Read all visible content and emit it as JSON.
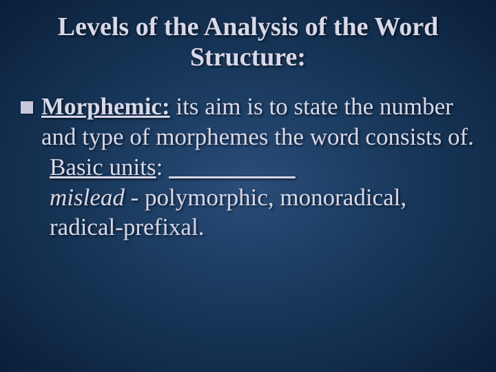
{
  "slide": {
    "title": "Levels of the Analysis of the Word Structure:",
    "bullet_term": "Morphemic:",
    "bullet_text": " its aim is to state the number and type of morphemes the word consists of.",
    "basic_units_label": "Basic units",
    "colon": ": ",
    "blank": "                     ",
    "example_word": "mislead",
    "example_desc": " - polymorphic, monoradical, radical-prefixal."
  },
  "style": {
    "background_gradient_center": "#2a4d7a",
    "background_gradient_mid": "#1a3a5e",
    "background_gradient_edge": "#0a1f3a",
    "text_color": "#d8d8e8",
    "bullet_color": "#c8c8dc",
    "title_fontsize": 38,
    "body_fontsize": 35,
    "font_family": "Garamond, Georgia, Times New Roman, serif"
  }
}
